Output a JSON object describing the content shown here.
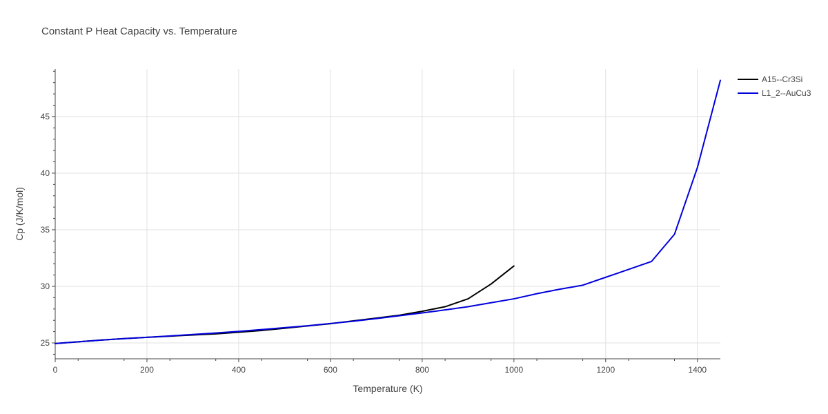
{
  "chart_data": {
    "type": "line",
    "title": "Constant P Heat Capacity vs. Temperature",
    "xlabel": "Temperature (K)",
    "ylabel": "Cp (J/K/mol)",
    "xlim": [
      0,
      1450
    ],
    "ylim": [
      23.6,
      49.2
    ],
    "xticks": [
      0,
      200,
      400,
      600,
      800,
      1000,
      1200,
      1400
    ],
    "xtick_labels": [
      "0",
      "200",
      "400",
      "600",
      "800",
      "1000",
      "1200",
      "1400"
    ],
    "yticks": [
      25,
      30,
      35,
      40,
      45
    ],
    "ytick_labels": [
      "25",
      "30",
      "35",
      "40",
      "45"
    ],
    "grid": true,
    "legend_position": "top-right",
    "series": [
      {
        "name": "A15--Cr3Si",
        "color": "#000000",
        "x": [
          0,
          50,
          100,
          150,
          200,
          250,
          300,
          350,
          400,
          450,
          500,
          550,
          600,
          650,
          700,
          750,
          800,
          850,
          900,
          950,
          1000
        ],
        "y": [
          24.95,
          25.1,
          25.25,
          25.38,
          25.5,
          25.6,
          25.7,
          25.8,
          25.95,
          26.1,
          26.3,
          26.5,
          26.7,
          26.95,
          27.2,
          27.45,
          27.8,
          28.2,
          28.9,
          30.2,
          31.8
        ]
      },
      {
        "name": "L1_2--AuCu3",
        "color": "#0000dd",
        "x": [
          0,
          50,
          100,
          150,
          200,
          250,
          300,
          350,
          400,
          450,
          500,
          550,
          600,
          650,
          700,
          750,
          800,
          850,
          900,
          950,
          1000,
          1050,
          1100,
          1150,
          1200,
          1250,
          1300,
          1350,
          1400,
          1450
        ],
        "y": [
          24.95,
          25.1,
          25.25,
          25.38,
          25.5,
          25.62,
          25.75,
          25.88,
          26.02,
          26.18,
          26.35,
          26.52,
          26.72,
          26.92,
          27.15,
          27.4,
          27.65,
          27.92,
          28.2,
          28.55,
          28.9,
          29.35,
          29.75,
          30.1,
          30.8,
          31.5,
          32.2,
          34.6,
          40.5,
          48.2
        ]
      }
    ]
  }
}
